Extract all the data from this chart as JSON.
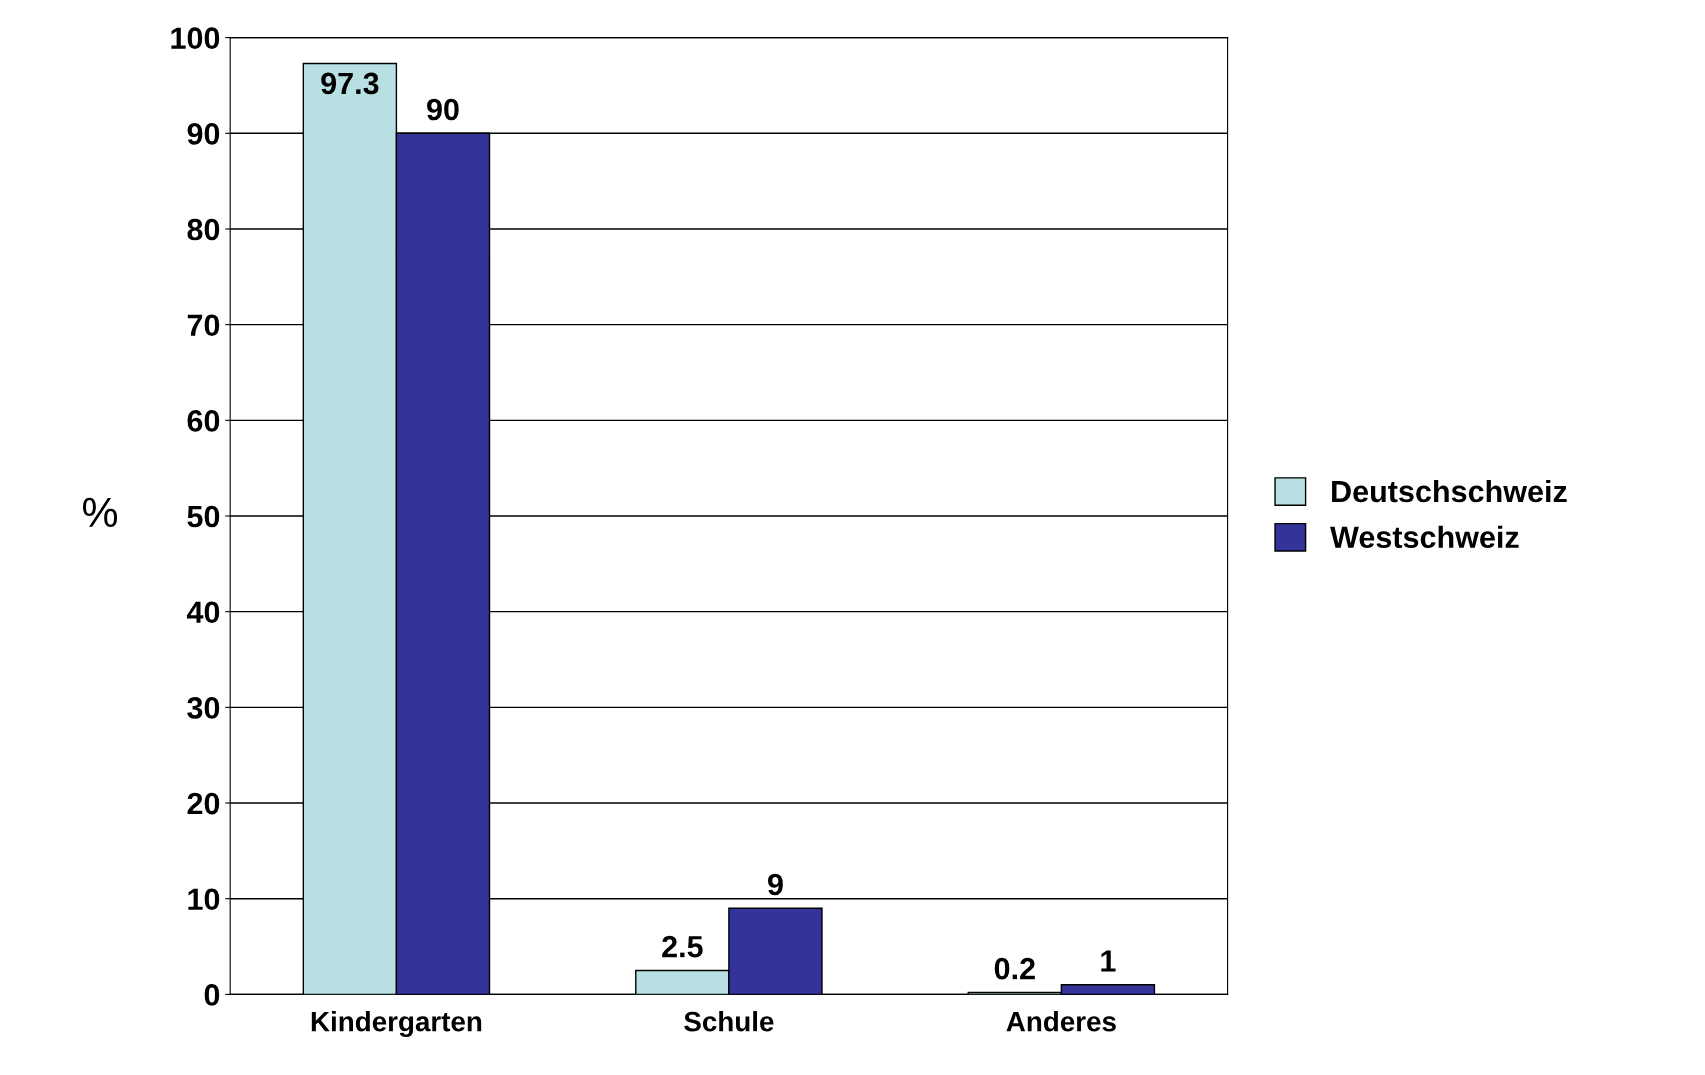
{
  "chart_data": {
    "type": "bar",
    "ylabel": "%",
    "categories": [
      "Kindergarten",
      "Schule",
      "Anderes"
    ],
    "series": [
      {
        "name": "Deutschschweiz",
        "color": "#b8e0e3",
        "values": [
          97.3,
          2.5,
          0.2
        ]
      },
      {
        "name": "Westschweiz",
        "color": "#333399",
        "values": [
          90,
          9,
          1
        ]
      }
    ],
    "ylim": [
      0,
      100
    ],
    "yticks": [
      0,
      10,
      20,
      30,
      40,
      50,
      60,
      70,
      80,
      90,
      100
    ],
    "grid": "y",
    "legend": "right",
    "data_labels": true
  }
}
